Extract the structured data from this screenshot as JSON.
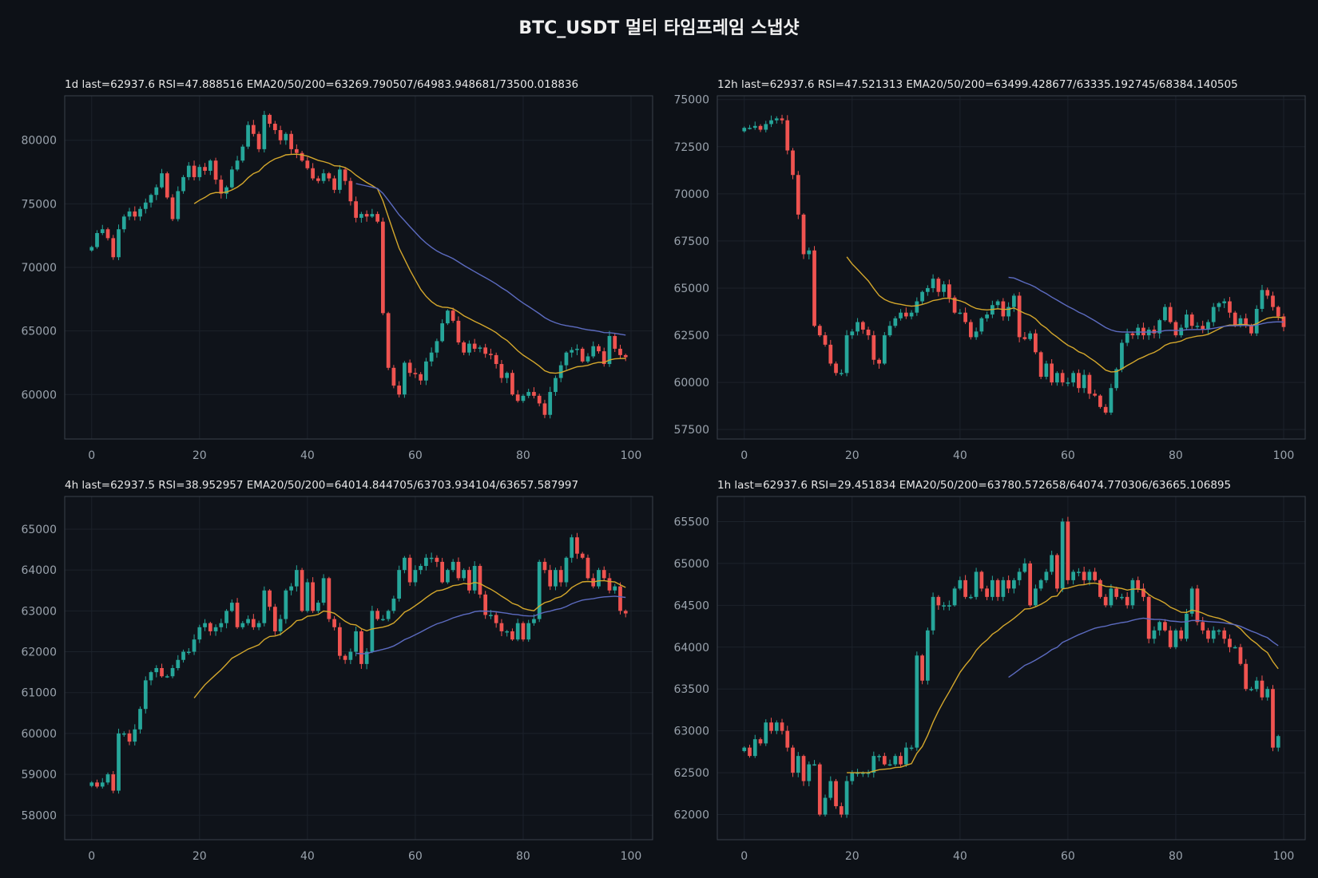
{
  "figure": {
    "title": "BTC_USDT  멀티 타임프레임 스냅샷",
    "background": "#0d1117",
    "panel_background": "#0f131a",
    "grid_color": "#1c222b",
    "axis_color": "#3a414b",
    "tick_color": "#9aa3ad",
    "up_color": "#26a69a",
    "down_color": "#ef5350",
    "ema20_color": "#d4a72c",
    "ema50_color": "#5c6bc0"
  },
  "chart_data": [
    {
      "type": "candlestick",
      "label": "1d  last=62937.6  RSI=47.888516  EMA20/50/200=63269.790507/64983.948681/73500.018836",
      "xlim": [
        -5,
        104
      ],
      "ylim": [
        56500,
        83500
      ],
      "xticks": [
        0,
        20,
        40,
        60,
        80,
        100
      ],
      "yticks": [
        60000,
        65000,
        70000,
        75000,
        80000
      ],
      "close": [
        71600,
        72700,
        73000,
        72300,
        70800,
        73000,
        74000,
        74400,
        74000,
        74600,
        75100,
        75700,
        76300,
        77400,
        75500,
        73800,
        76000,
        77100,
        78000,
        77100,
        77900,
        77600,
        78400,
        76900,
        75800,
        76300,
        77700,
        78400,
        79500,
        81200,
        80500,
        79300,
        82000,
        81300,
        80800,
        80000,
        80500,
        79300,
        79000,
        78400,
        77800,
        77000,
        76800,
        77400,
        77000,
        76100,
        77700,
        76800,
        75200,
        73900,
        74200,
        74000,
        74200,
        73600,
        66400,
        62100,
        60700,
        60000,
        62500,
        61700,
        61600,
        61100,
        62600,
        63300,
        64200,
        65600,
        66600,
        65800,
        64100,
        63300,
        64000,
        63600,
        63700,
        63200,
        63100,
        62400,
        61300,
        61700,
        60000,
        59500,
        59900,
        60200,
        59900,
        59300,
        58400,
        60200,
        61300,
        62300,
        63300,
        63500,
        63600,
        62600,
        63000,
        63800,
        63400,
        62400,
        64600,
        63600,
        63100,
        62937.6
      ]
    },
    {
      "type": "candlestick",
      "label": "12h  last=62937.6  RSI=47.521313  EMA20/50/200=63499.428677/63335.192745/68384.140505",
      "xlim": [
        -5,
        104
      ],
      "ylim": [
        57000,
        75200
      ],
      "xticks": [
        0,
        20,
        40,
        60,
        80,
        100
      ],
      "yticks": [
        57500,
        60000,
        62500,
        65000,
        67500,
        70000,
        72500,
        75000
      ],
      "close": [
        73500,
        73500,
        73600,
        73400,
        73700,
        73900,
        74000,
        73900,
        72300,
        71000,
        68900,
        66800,
        67000,
        63000,
        62500,
        62000,
        61000,
        60500,
        60500,
        62500,
        62700,
        63200,
        62800,
        62500,
        61200,
        61000,
        62500,
        63000,
        63400,
        63700,
        63500,
        63700,
        64300,
        64800,
        65000,
        65500,
        64800,
        65200,
        64500,
        63700,
        63700,
        63200,
        62400,
        62700,
        63400,
        63600,
        64100,
        64300,
        63500,
        64000,
        64600,
        62400,
        62300,
        62600,
        61600,
        60300,
        61000,
        60000,
        60500,
        60000,
        60000,
        60500,
        59700,
        60400,
        59400,
        59300,
        58700,
        58400,
        59700,
        60700,
        62100,
        62600,
        62500,
        62900,
        62500,
        62800,
        62600,
        63300,
        64000,
        63200,
        62500,
        62900,
        63600,
        63000,
        63000,
        62800,
        63200,
        64000,
        64200,
        64300,
        63700,
        63000,
        63400,
        63000,
        62600,
        63900,
        64900,
        64600,
        64000,
        63500,
        62937.6
      ]
    },
    {
      "type": "candlestick",
      "label": "4h  last=62937.5  RSI=38.952957  EMA20/50/200=64014.844705/63703.934104/63657.587997",
      "xlim": [
        -5,
        104
      ],
      "ylim": [
        57400,
        65800
      ],
      "xticks": [
        0,
        20,
        40,
        60,
        80,
        100
      ],
      "yticks": [
        58000,
        59000,
        60000,
        61000,
        62000,
        63000,
        64000,
        65000
      ],
      "close": [
        58800,
        58700,
        58800,
        59000,
        58600,
        60000,
        60000,
        59800,
        60100,
        60600,
        61300,
        61500,
        61600,
        61400,
        61400,
        61600,
        61800,
        62000,
        62000,
        62300,
        62600,
        62700,
        62500,
        62600,
        62700,
        63000,
        63200,
        62600,
        62700,
        62800,
        62600,
        62700,
        63500,
        63100,
        62500,
        62800,
        63500,
        63600,
        64000,
        63000,
        63700,
        63000,
        63200,
        63800,
        62800,
        62600,
        61900,
        61800,
        62000,
        62500,
        61700,
        62000,
        63000,
        62800,
        62800,
        63000,
        63300,
        64000,
        64300,
        63700,
        64000,
        64100,
        64300,
        64300,
        64200,
        63700,
        64000,
        64200,
        63800,
        64000,
        63500,
        64100,
        63400,
        62900,
        62900,
        62700,
        62500,
        62500,
        62300,
        62700,
        62300,
        62700,
        62800,
        64200,
        64000,
        63600,
        64000,
        63700,
        64300,
        64800,
        64400,
        64300,
        63800,
        63600,
        64000,
        63800,
        63500,
        63600,
        63000,
        62937.5
      ]
    },
    {
      "type": "candlestick",
      "label": "1h  last=62937.6  RSI=29.451834  EMA20/50/200=63780.572658/64074.770306/63665.106895",
      "xlim": [
        -5,
        104
      ],
      "ylim": [
        61700,
        65800
      ],
      "xticks": [
        0,
        20,
        40,
        60,
        80,
        100
      ],
      "yticks": [
        62000,
        62500,
        63000,
        63500,
        64000,
        64500,
        65000,
        65500
      ],
      "close": [
        62800,
        62700,
        62900,
        62850,
        63100,
        63000,
        63100,
        63000,
        62800,
        62500,
        62700,
        62400,
        62600,
        62600,
        62000,
        62200,
        62400,
        62100,
        62000,
        62400,
        62500,
        62500,
        62500,
        62500,
        62700,
        62700,
        62600,
        62600,
        62700,
        62600,
        62800,
        62800,
        63900,
        63600,
        64200,
        64600,
        64500,
        64500,
        64500,
        64700,
        64800,
        64600,
        64600,
        64900,
        64700,
        64600,
        64800,
        64600,
        64800,
        64700,
        64800,
        64900,
        65000,
        64500,
        64700,
        64800,
        64900,
        65100,
        64700,
        65500,
        64800,
        64900,
        64900,
        64800,
        64900,
        64800,
        64600,
        64500,
        64700,
        64600,
        64600,
        64500,
        64800,
        64700,
        64600,
        64100,
        64200,
        64300,
        64200,
        64000,
        64200,
        64100,
        64400,
        64700,
        64300,
        64200,
        64100,
        64200,
        64200,
        64100,
        64000,
        64000,
        63800,
        63500,
        63500,
        63600,
        63400,
        63500,
        62800,
        62937.6
      ]
    }
  ]
}
